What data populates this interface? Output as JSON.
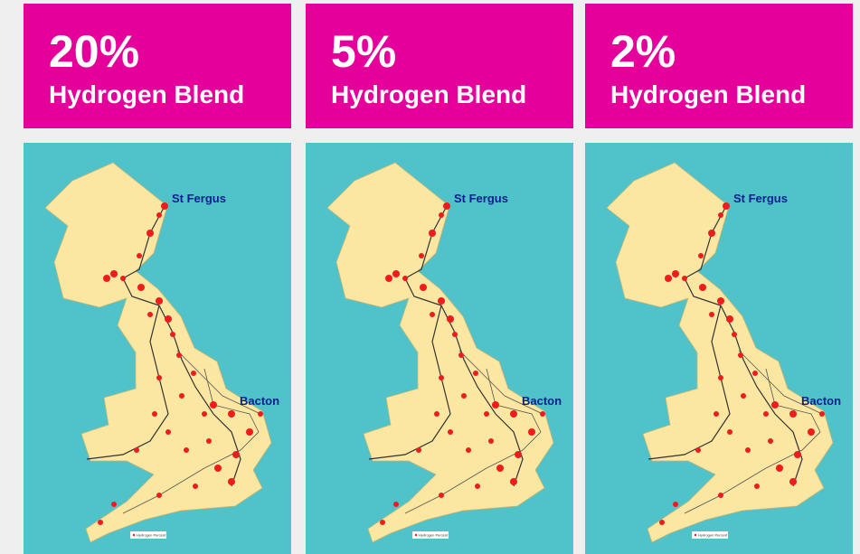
{
  "panels": [
    {
      "percent": "20%",
      "label": "Hydrogen Blend",
      "map": {
        "north_terminal": "St Fergus",
        "east_terminal": "Bacton",
        "legend": "Hydrogen Percent"
      }
    },
    {
      "percent": "5%",
      "label": "Hydrogen Blend",
      "map": {
        "north_terminal": "St Fergus",
        "east_terminal": "Bacton",
        "legend": "Hydrogen Percent"
      }
    },
    {
      "percent": "2%",
      "label": "Hydrogen Blend",
      "map": {
        "north_terminal": "St Fergus",
        "east_terminal": "Bacton",
        "legend": "Hydrogen Percent"
      }
    }
  ]
}
